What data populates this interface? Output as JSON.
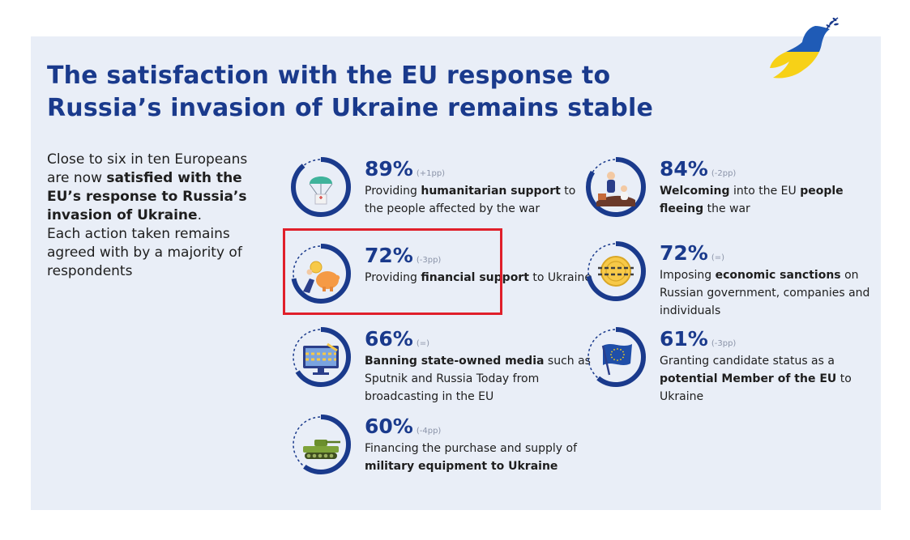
{
  "title": {
    "line1": "The satisfaction with the EU response to",
    "line2": "Russia’s invasion of Ukraine remains stable"
  },
  "intro": {
    "p1": "Close to six in ten Europeans are now ",
    "p1_bold": "satisfied with the EU’s response to Russia’s invasion of Ukraine",
    "p1_end": ".",
    "p2": "Each action taken remains agreed with by a majority of respondents"
  },
  "colors": {
    "accent": "#1a3a8c",
    "panel": "#e9eef7",
    "ring_track": "#cfd8ea",
    "highlight": "#e01f2a",
    "ukraine_blue": "#1f5bb6",
    "ukraine_yellow": "#f7d117"
  },
  "chart_data": {
    "type": "donut",
    "unit": "%",
    "items": [
      {
        "id": "humanitarian",
        "value": 89,
        "value_label": "89%",
        "change": "(+1pp)",
        "icon": "parachute-aid-box-icon",
        "text": [
          {
            "t": "Providing "
          },
          {
            "t": "humanitarian support",
            "b": true
          },
          {
            "t": " to the people affected by the war"
          }
        ]
      },
      {
        "id": "financial",
        "value": 72,
        "value_label": "72%",
        "change": "(-3pp)",
        "icon": "piggy-bank-coin-icon",
        "text": [
          {
            "t": "Providing "
          },
          {
            "t": "financial support",
            "b": true
          },
          {
            "t": " to Ukraine"
          }
        ]
      },
      {
        "id": "media",
        "value": 66,
        "value_label": "66%",
        "change": "(=)",
        "icon": "monitor-banned-icon",
        "text": [
          {
            "t": "Banning state-owned media",
            "b": true
          },
          {
            "t": " such as Sputnik and Russia Today from broadcasting in the EU"
          }
        ]
      },
      {
        "id": "military",
        "value": 60,
        "value_label": "60%",
        "change": "(-4pp)",
        "icon": "tank-icon",
        "text": [
          {
            "t": "Financing the purchase and supply of "
          },
          {
            "t": "military equipment to Ukraine",
            "b": true
          }
        ]
      },
      {
        "id": "refugees",
        "value": 84,
        "value_label": "84%",
        "change": "(-2pp)",
        "icon": "refugees-icon",
        "text": [
          {
            "t": "Welcoming",
            "b": true
          },
          {
            "t": " into the EU "
          },
          {
            "t": "people fleeing",
            "b": true
          },
          {
            "t": " the war"
          }
        ]
      },
      {
        "id": "sanctions",
        "value": 72,
        "value_label": "72%",
        "change": "(=)",
        "icon": "sanctioned-coin-icon",
        "text": [
          {
            "t": "Imposing "
          },
          {
            "t": "economic sanctions",
            "b": true
          },
          {
            "t": " on Russian government, companies and individuals"
          }
        ]
      },
      {
        "id": "candidate",
        "value": 61,
        "value_label": "61%",
        "change": "(-3pp)",
        "icon": "eu-flag-icon",
        "text": [
          {
            "t": "Granting candidate status as a "
          },
          {
            "t": "potential Member of the EU",
            "b": true
          },
          {
            "t": " to Ukraine"
          }
        ]
      }
    ]
  }
}
